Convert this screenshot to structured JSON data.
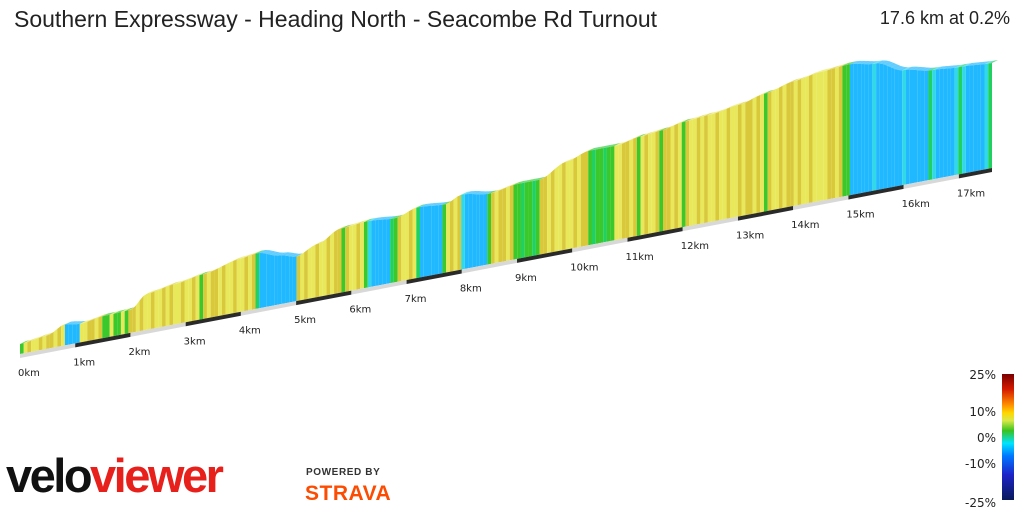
{
  "header": {
    "title": "Southern Expressway - Heading North - Seacombe Rd Turnout",
    "summary": "17.6 km at 0.2%"
  },
  "legend": {
    "labels": [
      "25%",
      "10%",
      "0%",
      "-10%",
      "-25%"
    ]
  },
  "branding": {
    "velo_dark": "velo",
    "velo_red": "viewer",
    "powered_by": "POWERED BY",
    "strava": "STRAVA"
  },
  "chart_data": {
    "type": "area",
    "title": "Southern Expressway - Heading North - Seacombe Rd Turnout",
    "distance_km": 17.6,
    "average_gradient_pct": 0.2,
    "x_ticks": [
      "0km",
      "1km",
      "2km",
      "3km",
      "4km",
      "5km",
      "6km",
      "7km",
      "8km",
      "9km",
      "10km",
      "11km",
      "12km",
      "13km",
      "14km",
      "15km",
      "16km",
      "17km"
    ],
    "profile": [
      {
        "km": 0.0,
        "rel": 0.0
      },
      {
        "km": 0.5,
        "rel": 0.03
      },
      {
        "km": 0.8,
        "rel": 0.1
      },
      {
        "km": 1.1,
        "rel": 0.08
      },
      {
        "km": 1.5,
        "rel": 0.11
      },
      {
        "km": 2.0,
        "rel": 0.12
      },
      {
        "km": 2.3,
        "rel": 0.24
      },
      {
        "km": 2.8,
        "rel": 0.28
      },
      {
        "km": 3.3,
        "rel": 0.32
      },
      {
        "km": 4.0,
        "rel": 0.4
      },
      {
        "km": 4.3,
        "rel": 0.42
      },
      {
        "km": 4.7,
        "rel": 0.36
      },
      {
        "km": 5.0,
        "rel": 0.32
      },
      {
        "km": 5.4,
        "rel": 0.4
      },
      {
        "km": 5.8,
        "rel": 0.5
      },
      {
        "km": 6.3,
        "rel": 0.52
      },
      {
        "km": 6.8,
        "rel": 0.5
      },
      {
        "km": 7.2,
        "rel": 0.56
      },
      {
        "km": 7.7,
        "rel": 0.54
      },
      {
        "km": 8.0,
        "rel": 0.6
      },
      {
        "km": 8.5,
        "rel": 0.56
      },
      {
        "km": 9.0,
        "rel": 0.6
      },
      {
        "km": 9.4,
        "rel": 0.6
      },
      {
        "km": 9.9,
        "rel": 0.72
      },
      {
        "km": 10.3,
        "rel": 0.78
      },
      {
        "km": 10.8,
        "rel": 0.78
      },
      {
        "km": 11.2,
        "rel": 0.82
      },
      {
        "km": 11.6,
        "rel": 0.84
      },
      {
        "km": 12.0,
        "rel": 0.88
      },
      {
        "km": 12.5,
        "rel": 0.9
      },
      {
        "km": 13.0,
        "rel": 0.94
      },
      {
        "km": 13.5,
        "rel": 1.0
      },
      {
        "km": 14.0,
        "rel": 1.06
      },
      {
        "km": 14.5,
        "rel": 1.1
      },
      {
        "km": 15.0,
        "rel": 1.12
      },
      {
        "km": 15.5,
        "rel": 1.08
      },
      {
        "km": 16.0,
        "rel": 0.97
      },
      {
        "km": 16.5,
        "rel": 0.92
      },
      {
        "km": 17.0,
        "rel": 0.9
      },
      {
        "km": 17.6,
        "rel": 0.88
      }
    ],
    "gradient_colors": {
      "steep_up": "#d8c83a",
      "mild_up": "#e8e85a",
      "flat_up": "#3ac82a",
      "flat": "#20d060",
      "mild_down": "#30d8e8",
      "steep_down": "#20b8ff"
    },
    "legend_range_pct": [
      -25,
      25
    ]
  }
}
